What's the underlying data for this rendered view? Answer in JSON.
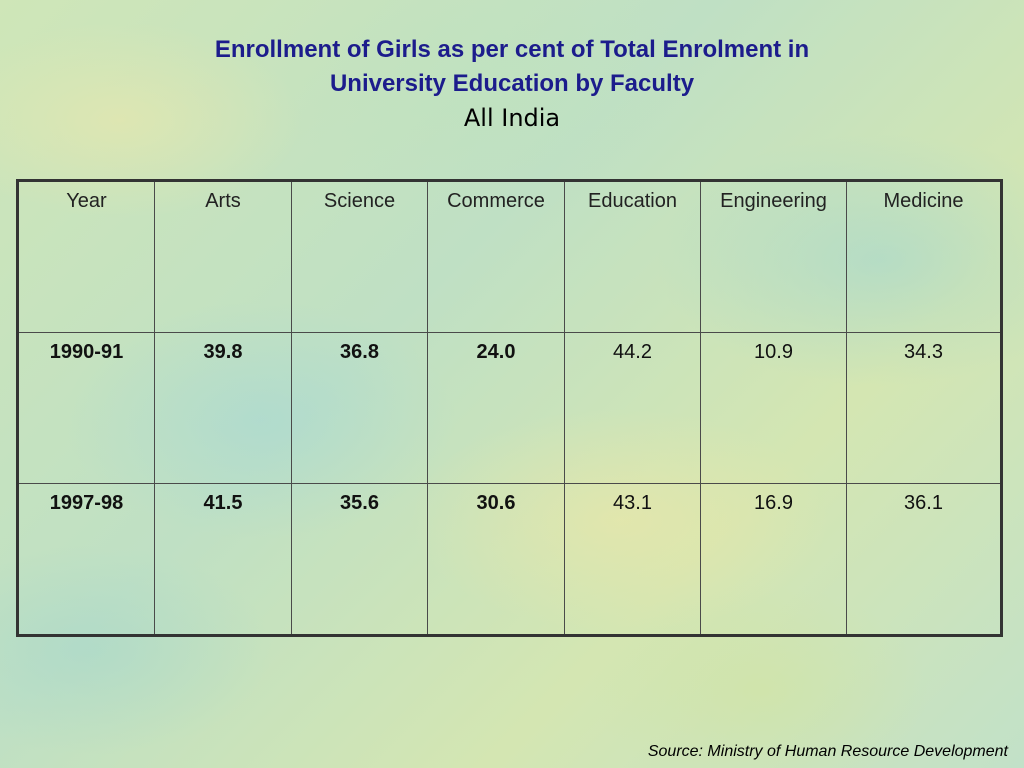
{
  "slide": {
    "title_line1": "Enrollment of Girls as per cent of Total Enrolment in",
    "title_line2": "University Education by Faculty",
    "subtitle": "All India",
    "source": "Source: Ministry of Human Resource Development",
    "title_color": "#1c1c8c"
  },
  "table": {
    "headers": [
      "Year",
      "Arts",
      "Science",
      "Commerce",
      "Education",
      "Engineering",
      "Medicine"
    ],
    "rows": [
      [
        "1990-91",
        "39.8",
        "36.8",
        "24.0",
        "44.2",
        "10.9",
        "34.3"
      ],
      [
        "1997-98",
        "41.5",
        "35.6",
        "30.6",
        "43.1",
        "16.9",
        "36.1"
      ]
    ]
  }
}
